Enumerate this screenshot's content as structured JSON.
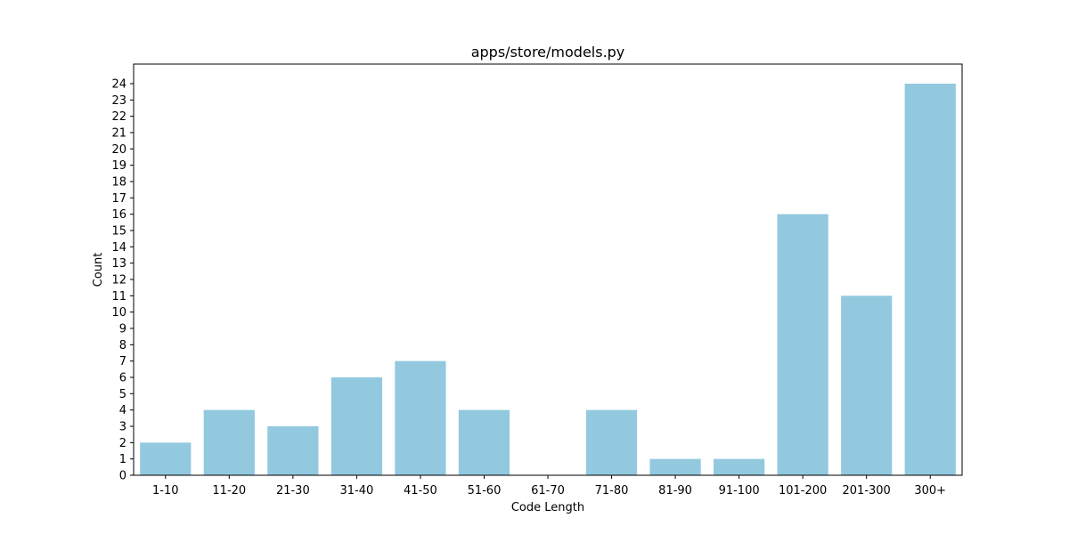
{
  "chart_data": {
    "type": "bar",
    "title": "apps/store/models.py",
    "xlabel": "Code Length",
    "ylabel": "Count",
    "categories": [
      "1-10",
      "11-20",
      "21-30",
      "31-40",
      "41-50",
      "51-60",
      "61-70",
      "71-80",
      "81-90",
      "91-100",
      "101-200",
      "201-300",
      "300+"
    ],
    "values": [
      2,
      4,
      3,
      6,
      7,
      4,
      0,
      4,
      1,
      1,
      16,
      11,
      24
    ],
    "ylim": [
      0,
      25.2
    ],
    "yticks": [
      0,
      1,
      2,
      3,
      4,
      5,
      6,
      7,
      8,
      9,
      10,
      11,
      12,
      13,
      14,
      15,
      16,
      17,
      18,
      19,
      20,
      21,
      22,
      23,
      24
    ],
    "bar_color": "#92c9df",
    "grid": false,
    "legend": "none"
  }
}
